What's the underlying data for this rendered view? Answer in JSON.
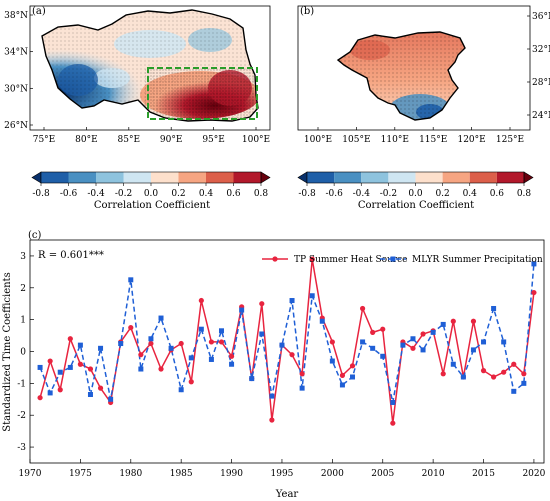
{
  "panels": {
    "a": {
      "label": "(a)",
      "lat_ticks": [
        "38°N",
        "34°N",
        "30°N",
        "26°N"
      ],
      "lon_ticks": [
        "75°E",
        "80°E",
        "85°E",
        "90°E",
        "95°E",
        "100°E"
      ],
      "box_color": "#2a9d2a"
    },
    "b": {
      "label": "(b)",
      "lat_ticks": [
        "36°N",
        "32°N",
        "28°N",
        "24°N"
      ],
      "lon_ticks": [
        "100°E",
        "105°E",
        "110°E",
        "115°E",
        "120°E",
        "125°E"
      ]
    }
  },
  "colorbar": {
    "ticks": [
      "-0.8",
      "-0.6",
      "-0.4",
      "-0.2",
      "0.0",
      "0.2",
      "0.4",
      "0.6",
      "0.8"
    ],
    "label": "Correlation Coefficient",
    "colors": [
      "#08306b",
      "#1f5fa8",
      "#4a90c2",
      "#8ec3de",
      "#cfe6f2",
      "#fde0cc",
      "#f6a582",
      "#dc5f4a",
      "#b2182b",
      "#67000d"
    ]
  },
  "chart_data": {
    "type": "line",
    "panel_label": "(c)",
    "annotation": "R = 0.601***",
    "xlabel": "Year",
    "ylabel": "Standardized Time Coefficients",
    "xlim": [
      1970,
      2021
    ],
    "ylim": [
      -3.5,
      3.5
    ],
    "xticks": [
      "1970",
      "1975",
      "1980",
      "1985",
      "1990",
      "1995",
      "2000",
      "2005",
      "2010",
      "2015",
      "2020"
    ],
    "yticks": [
      "-3",
      "-2",
      "-1",
      "0",
      "1",
      "2",
      "3"
    ],
    "x": [
      1971,
      1972,
      1973,
      1974,
      1975,
      1976,
      1977,
      1978,
      1979,
      1980,
      1981,
      1982,
      1983,
      1984,
      1985,
      1986,
      1987,
      1988,
      1989,
      1990,
      1991,
      1992,
      1993,
      1994,
      1995,
      1996,
      1997,
      1998,
      1999,
      2000,
      2001,
      2002,
      2003,
      2004,
      2005,
      2006,
      2007,
      2008,
      2009,
      2010,
      2011,
      2012,
      2013,
      2014,
      2015,
      2016,
      2017,
      2018,
      2019,
      2020
    ],
    "legend": "top-right",
    "series": [
      {
        "name": "TP Summer Heat Source",
        "color": "#e8243f",
        "style": "solid",
        "marker": "circle",
        "values": [
          -1.45,
          -0.3,
          -1.2,
          0.4,
          -0.4,
          -0.55,
          -1.15,
          -1.6,
          0.3,
          0.75,
          -0.1,
          0.25,
          -0.55,
          0.05,
          0.25,
          -0.95,
          1.6,
          0.3,
          0.3,
          -0.15,
          1.4,
          -0.85,
          1.5,
          -2.15,
          0.2,
          -0.1,
          -0.7,
          2.9,
          1.05,
          0.3,
          -0.75,
          -0.45,
          1.35,
          0.6,
          0.7,
          -2.25,
          0.3,
          0.1,
          0.55,
          0.65,
          -0.7,
          0.95,
          -0.8,
          0.95,
          -0.6,
          -0.8,
          -0.65,
          -0.4,
          -0.7,
          1.85
        ]
      },
      {
        "name": "MLYR Summer Precipitation",
        "color": "#1f5fd6",
        "style": "dashed",
        "marker": "square",
        "values": [
          -0.5,
          -1.3,
          -0.65,
          -0.5,
          0.2,
          -1.35,
          0.1,
          -1.5,
          0.25,
          2.25,
          -0.55,
          0.4,
          1.05,
          0.1,
          -1.2,
          -0.2,
          0.7,
          -0.25,
          0.65,
          -0.4,
          1.3,
          -0.85,
          0.55,
          -1.4,
          0.2,
          1.6,
          -1.15,
          1.75,
          0.95,
          -0.3,
          -1.05,
          -0.8,
          0.3,
          0.1,
          -0.15,
          -1.6,
          0.2,
          0.4,
          0.05,
          0.6,
          0.85,
          -0.4,
          -0.8,
          0.05,
          0.3,
          1.35,
          0.3,
          -1.25,
          -1.0,
          2.75
        ]
      }
    ]
  }
}
